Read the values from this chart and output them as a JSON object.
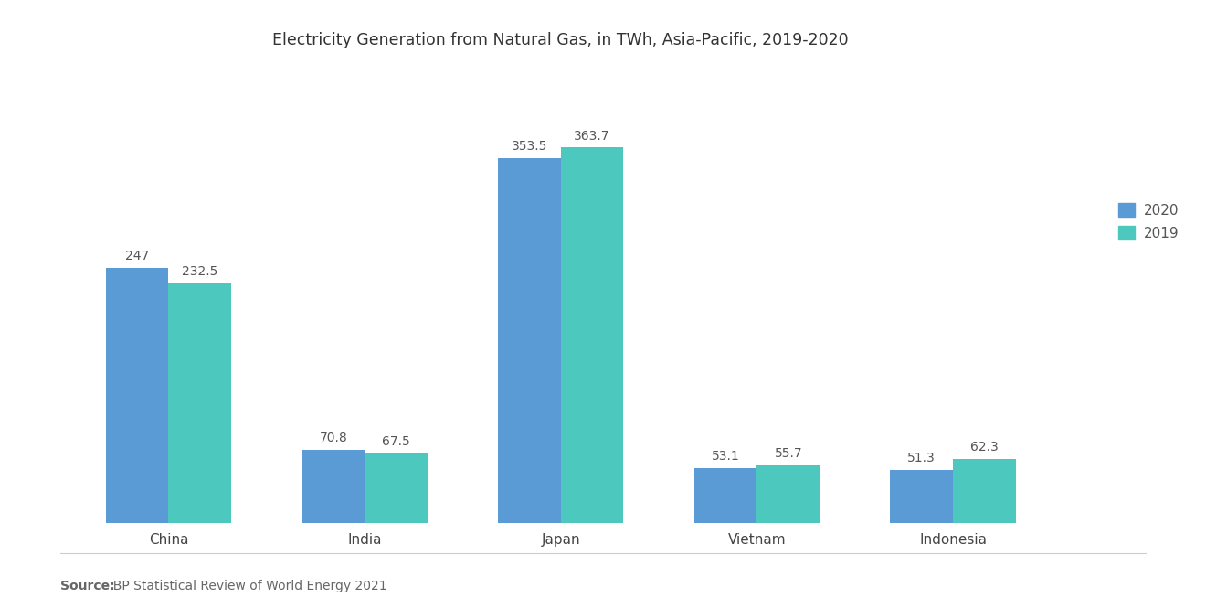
{
  "title": "Electricity Generation from Natural Gas, in TWh, Asia-Pacific, 2019-2020",
  "categories": [
    "China",
    "India",
    "Japan",
    "Vietnam",
    "Indonesia"
  ],
  "values_2020": [
    247,
    70.8,
    353.5,
    53.1,
    51.3
  ],
  "values_2019": [
    232.5,
    67.5,
    363.7,
    55.7,
    62.3
  ],
  "color_2020": "#5b9bd5",
  "color_2019": "#4dc8be",
  "background_color": "#ffffff",
  "title_fontsize": 12.5,
  "legend_labels": [
    "2020",
    "2019"
  ],
  "source_bold": "Source:",
  "source_rest": "  BP Statistical Review of World Energy 2021",
  "bar_width": 0.32,
  "ylim": [
    0,
    430
  ],
  "label_fontsize": 10,
  "tick_fontsize": 11
}
